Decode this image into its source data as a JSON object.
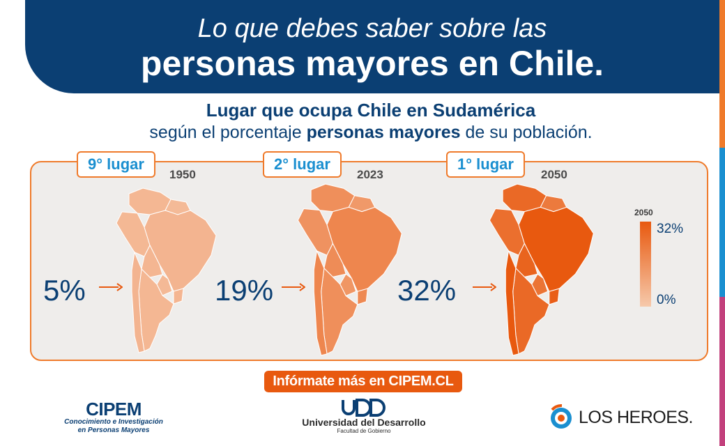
{
  "header": {
    "line1": "Lo que debes saber sobre las",
    "line2": "personas mayores en Chile."
  },
  "subtitle": {
    "line1": "Lugar que ocupa Chile en Sudamérica",
    "line2_pre": "según el porcentaje ",
    "line2_bold": "personas mayores",
    "line2_post": " de su población."
  },
  "maps": [
    {
      "rank": "9° lugar",
      "year": "1950",
      "percent": "5%",
      "fill_share": 0.16
    },
    {
      "rank": "2° lugar",
      "year": "2023",
      "percent": "19%",
      "fill_share": 0.59
    },
    {
      "rank": "1° lugar",
      "year": "2050",
      "percent": "32%",
      "fill_share": 1.0
    }
  ],
  "legend": {
    "year": "2050",
    "max": "32%",
    "min": "0%"
  },
  "cta": {
    "label": "Infórmate más en CIPEM.CL"
  },
  "logos": {
    "cipem": {
      "name": "CIPEM",
      "tagline1": "Conocimiento e Investigación",
      "tagline2": "en Personas Mayores"
    },
    "udd": {
      "name": "Universidad del Desarrollo",
      "sub": "Facultad de Gobierno"
    },
    "los_heroes": {
      "name": "LOS HEROES."
    }
  },
  "colors": {
    "navy": "#0b3f73",
    "orange": "#e8590f",
    "accent_blue": "#1a8fd0",
    "panel": "#efedeb",
    "stripe": [
      "#ef7a2a",
      "#1a8fd0",
      "#c2407c"
    ]
  }
}
